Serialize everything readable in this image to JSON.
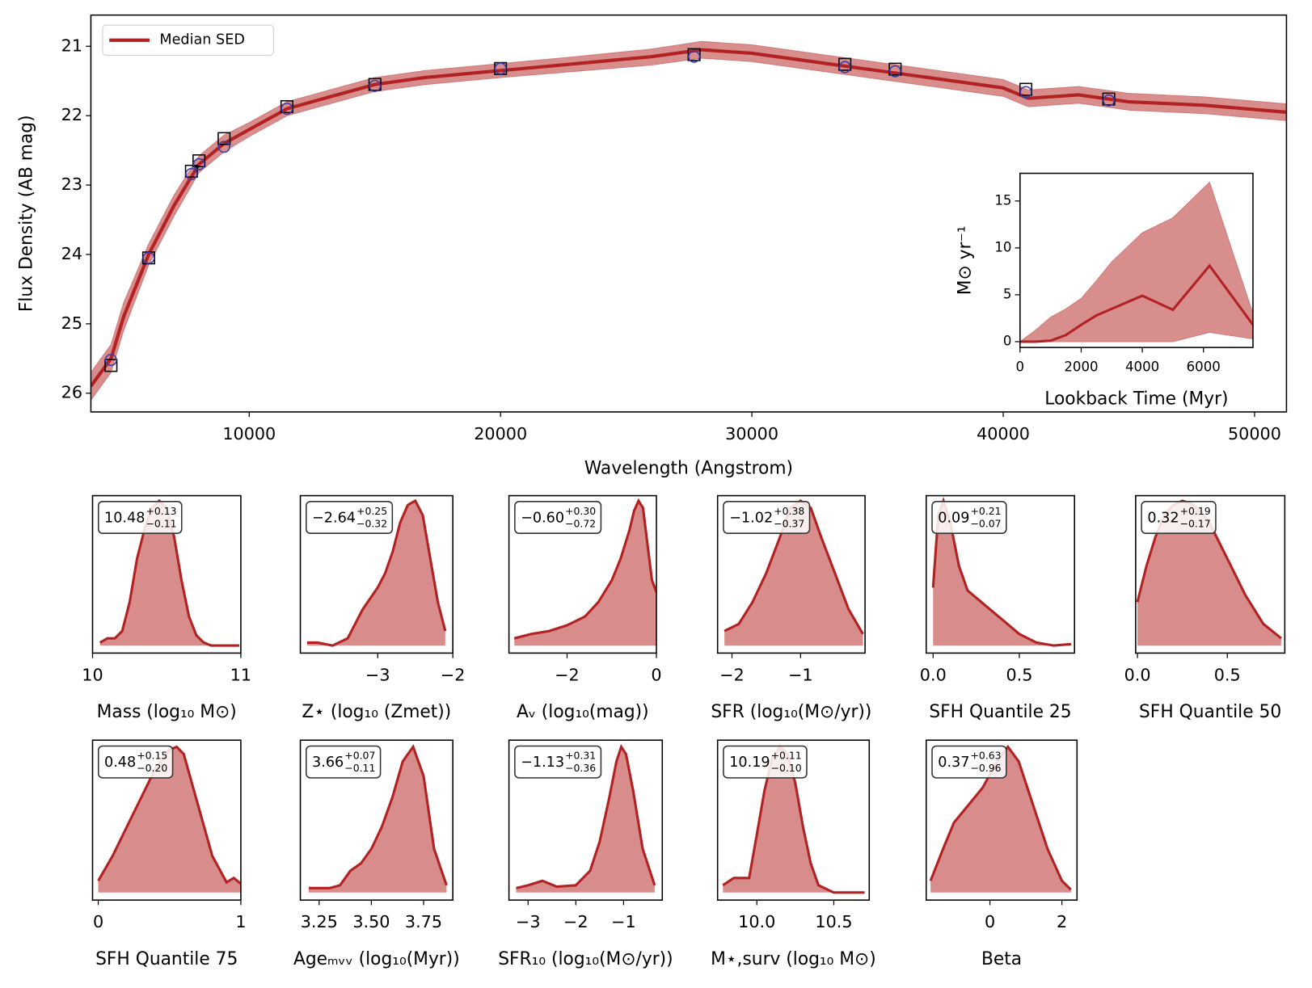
{
  "chart_data": [
    {
      "type": "line",
      "xlabel": "Wavelength (Angstrom)",
      "ylabel": "Flux Density (AB mag)",
      "xlim": [
        3700,
        51270
      ],
      "ylim": [
        26.27,
        20.55
      ],
      "xticks": [
        10000,
        20000,
        30000,
        40000,
        50000
      ],
      "yticks": [
        21,
        22,
        23,
        24,
        25,
        26
      ],
      "legend": "upper left",
      "x": [
        3700,
        4500,
        5000,
        6000,
        7000,
        8000,
        9000,
        10000,
        11500,
        13000,
        15000,
        17000,
        20000,
        23000,
        26000,
        28000,
        30000,
        33000,
        36000,
        38000,
        40000,
        41000,
        43000,
        45000,
        48000,
        51270
      ],
      "series": [
        {
          "name": "Median SED",
          "color": "#b22222",
          "band_color": "#d27a7a",
          "values": [
            25.9,
            25.5,
            24.9,
            24.0,
            23.3,
            22.7,
            22.4,
            22.2,
            21.9,
            21.75,
            21.55,
            21.45,
            21.35,
            21.25,
            21.15,
            21.05,
            21.1,
            21.25,
            21.4,
            21.5,
            21.6,
            21.75,
            21.7,
            21.8,
            21.85,
            21.95
          ],
          "lower": [
            25.7,
            25.3,
            24.7,
            23.85,
            23.15,
            22.58,
            22.28,
            22.1,
            21.8,
            21.65,
            21.45,
            21.35,
            21.25,
            21.15,
            21.04,
            20.93,
            20.98,
            21.13,
            21.28,
            21.38,
            21.48,
            21.63,
            21.58,
            21.68,
            21.73,
            21.83
          ],
          "upper": [
            26.1,
            25.7,
            25.1,
            24.15,
            23.45,
            22.82,
            22.52,
            22.3,
            22.0,
            21.85,
            21.65,
            21.55,
            21.45,
            21.36,
            21.27,
            21.17,
            21.22,
            21.37,
            21.52,
            21.62,
            21.72,
            21.87,
            21.82,
            21.92,
            21.97,
            22.07
          ]
        }
      ],
      "photometry": {
        "x": [
          4500,
          6000,
          7700,
          8000,
          9000,
          11500,
          15000,
          20000,
          27700,
          33700,
          35700,
          40900,
          44200
        ],
        "observed": [
          25.6,
          24.05,
          22.8,
          22.65,
          22.33,
          21.87,
          21.55,
          21.32,
          21.12,
          21.26,
          21.33,
          21.62,
          21.76
        ],
        "model": [
          25.52,
          24.05,
          22.84,
          22.7,
          22.45,
          21.9,
          21.57,
          21.32,
          21.15,
          21.3,
          21.36,
          21.66,
          21.78
        ],
        "observed_color": "#000000",
        "model_color": "#3a3aa8"
      }
    },
    {
      "type": "line",
      "xlabel": "Lookback Time (Myr)",
      "ylabel": "M⊙ yr⁻¹",
      "xlim": [
        0,
        7620
      ],
      "ylim": [
        -0.62,
        17.95
      ],
      "xticks": [
        0,
        2000,
        4000,
        6000
      ],
      "yticks": [
        0,
        5,
        10,
        15
      ],
      "x": [
        0,
        500,
        1000,
        1500,
        2000,
        2500,
        3000,
        4000,
        5000,
        6200,
        7620
      ],
      "series": [
        {
          "color": "#b22222",
          "band_color": "#d27a7a",
          "values": [
            0,
            0,
            0.1,
            0.7,
            1.8,
            2.8,
            3.5,
            4.9,
            3.4,
            8.1,
            1.8
          ],
          "lower": [
            0,
            0,
            0,
            0,
            0,
            0,
            0,
            0,
            0,
            1,
            0.3
          ],
          "upper": [
            0,
            1.2,
            2.6,
            3.5,
            4.6,
            6.5,
            8.5,
            11.6,
            13.2,
            17,
            3
          ]
        }
      ]
    },
    {
      "type": "area",
      "xlabel": "Mass (log₁₀ M⊙)",
      "color": "#b22222",
      "fill": "#d88c8c",
      "annotation": {
        "median": "10.48",
        "upper": "+0.13",
        "lower": "−0.11"
      },
      "xlim": [
        10.0,
        11.0
      ],
      "ylim": [
        -0.052,
        1.035
      ],
      "xticks": [
        10,
        11
      ],
      "x": [
        10.05,
        10.1,
        10.15,
        10.2,
        10.25,
        10.3,
        10.35,
        10.4,
        10.45,
        10.5,
        10.55,
        10.6,
        10.65,
        10.7,
        10.75,
        10.8,
        10.9,
        10.99
      ],
      "values": [
        0.02,
        0.05,
        0.05,
        0.1,
        0.3,
        0.6,
        0.8,
        0.95,
        1.0,
        0.95,
        0.75,
        0.45,
        0.2,
        0.07,
        0.02,
        0.0,
        0.0,
        0.0
      ]
    },
    {
      "type": "area",
      "xlabel": "Z⋆ (log₁₀ (Zmet))",
      "color": "#b22222",
      "fill": "#d88c8c",
      "annotation": {
        "median": "−2.64",
        "upper": "+0.25",
        "lower": "−0.32"
      },
      "xlim": [
        -4.03,
        -2.0
      ],
      "ylim": [
        -0.052,
        1.035
      ],
      "xticks": [
        {
          "value": -3,
          "label": "−3"
        },
        {
          "value": -2,
          "label": "−2"
        }
      ],
      "x": [
        -3.94,
        -3.8,
        -3.6,
        -3.4,
        -3.2,
        -3.0,
        -2.9,
        -2.8,
        -2.7,
        -2.6,
        -2.5,
        -2.4,
        -2.3,
        -2.2,
        -2.1
      ],
      "values": [
        0.02,
        0.02,
        0.0,
        0.05,
        0.25,
        0.4,
        0.5,
        0.65,
        0.85,
        0.97,
        1.0,
        0.9,
        0.6,
        0.3,
        0.1
      ]
    },
    {
      "type": "area",
      "xlabel": "Aᵥ (log₁₀(mag))",
      "color": "#b22222",
      "fill": "#d88c8c",
      "annotation": {
        "median": "−0.60",
        "upper": "+0.30",
        "lower": "−0.72"
      },
      "xlim": [
        -3.3,
        0.0
      ],
      "ylim": [
        -0.052,
        1.035
      ],
      "xticks": [
        {
          "value": -2,
          "label": "−2"
        },
        0
      ],
      "x": [
        -3.18,
        -2.8,
        -2.4,
        -2.0,
        -1.6,
        -1.3,
        -1.0,
        -0.8,
        -0.6,
        -0.5,
        -0.4,
        -0.3,
        -0.2,
        -0.1,
        0.0
      ],
      "values": [
        0.05,
        0.08,
        0.1,
        0.14,
        0.2,
        0.3,
        0.45,
        0.6,
        0.8,
        0.93,
        1.0,
        0.95,
        0.7,
        0.45,
        0.37
      ]
    },
    {
      "type": "area",
      "xlabel": "SFR (log₁₀(M⊙/yr))",
      "color": "#b22222",
      "fill": "#d88c8c",
      "annotation": {
        "median": "−1.02",
        "upper": "+0.38",
        "lower": "−0.37"
      },
      "xlim": [
        -2.21,
        -0.06
      ],
      "ylim": [
        -0.052,
        1.035
      ],
      "xticks": [
        {
          "value": -2,
          "label": "−2"
        },
        {
          "value": -1,
          "label": "−1"
        }
      ],
      "x": [
        -2.11,
        -1.9,
        -1.7,
        -1.5,
        -1.3,
        -1.15,
        -1.0,
        -0.85,
        -0.7,
        -0.5,
        -0.3,
        -0.09
      ],
      "values": [
        0.1,
        0.15,
        0.3,
        0.5,
        0.75,
        0.95,
        1.0,
        0.95,
        0.75,
        0.5,
        0.25,
        0.08
      ]
    },
    {
      "type": "area",
      "xlabel": "SFH Quantile 25",
      "color": "#b22222",
      "fill": "#d88c8c",
      "annotation": {
        "median": "0.09",
        "upper": "+0.21",
        "lower": "−0.07"
      },
      "xlim": [
        -0.04,
        0.82
      ],
      "ylim": [
        -0.052,
        1.035
      ],
      "xticks": [
        {
          "value": 0,
          "label": "0.0"
        },
        0.5
      ],
      "x": [
        0.0,
        0.03,
        0.06,
        0.1,
        0.15,
        0.2,
        0.3,
        0.4,
        0.5,
        0.6,
        0.7,
        0.8
      ],
      "values": [
        0.4,
        0.9,
        1.0,
        0.85,
        0.55,
        0.38,
        0.28,
        0.18,
        0.08,
        0.02,
        0.0,
        0.01
      ]
    },
    {
      "type": "area",
      "xlabel": "SFH Quantile 50",
      "color": "#b22222",
      "fill": "#d88c8c",
      "annotation": {
        "median": "0.32",
        "upper": "+0.19",
        "lower": "−0.17"
      },
      "xlim": [
        -0.01,
        0.82
      ],
      "ylim": [
        -0.052,
        1.035
      ],
      "xticks": [
        {
          "value": 0,
          "label": "0.0"
        },
        0.5
      ],
      "x": [
        0.0,
        0.05,
        0.1,
        0.15,
        0.2,
        0.25,
        0.3,
        0.35,
        0.4,
        0.5,
        0.6,
        0.7,
        0.8
      ],
      "values": [
        0.3,
        0.55,
        0.75,
        0.9,
        0.97,
        1.0,
        0.98,
        0.93,
        0.85,
        0.6,
        0.35,
        0.15,
        0.05
      ]
    },
    {
      "type": "area",
      "xlabel": "SFH Quantile 75",
      "color": "#b22222",
      "fill": "#d88c8c",
      "annotation": {
        "median": "0.48",
        "upper": "+0.15",
        "lower": "−0.20"
      },
      "xlim": [
        -0.04,
        1.0
      ],
      "ylim": [
        -0.052,
        1.046
      ],
      "xticks": [
        0,
        1
      ],
      "x": [
        0.0,
        0.1,
        0.2,
        0.3,
        0.4,
        0.5,
        0.55,
        0.6,
        0.7,
        0.8,
        0.9,
        0.95,
        1.0
      ],
      "values": [
        0.08,
        0.25,
        0.45,
        0.65,
        0.85,
        0.98,
        1.0,
        0.95,
        0.6,
        0.25,
        0.07,
        0.1,
        0.06
      ]
    },
    {
      "type": "area",
      "xlabel": "Ageₘᵥᵥ (log₁₀(Myr))",
      "color": "#b22222",
      "fill": "#d88c8c",
      "annotation": {
        "median": "3.66",
        "upper": "+0.07",
        "lower": "−0.11"
      },
      "xlim": [
        3.16,
        3.89
      ],
      "ylim": [
        -0.052,
        1.046
      ],
      "xticks": [
        3.25,
        {
          "value": 3.5,
          "label": "3.50"
        },
        3.75
      ],
      "x": [
        3.2,
        3.3,
        3.35,
        3.4,
        3.45,
        3.5,
        3.55,
        3.6,
        3.65,
        3.7,
        3.75,
        3.8,
        3.86
      ],
      "values": [
        0.03,
        0.03,
        0.05,
        0.15,
        0.2,
        0.3,
        0.45,
        0.65,
        0.9,
        1.0,
        0.8,
        0.3,
        0.05
      ]
    },
    {
      "type": "area",
      "xlabel": "SFR₁₀ (log₁₀(M⊙/yr))",
      "color": "#b22222",
      "fill": "#d88c8c",
      "annotation": {
        "median": "−1.13",
        "upper": "+0.31",
        "lower": "−0.36"
      },
      "xlim": [
        -3.4,
        -0.19
      ],
      "ylim": [
        -0.052,
        1.046
      ],
      "xticks": [
        {
          "value": -3,
          "label": "−3"
        },
        {
          "value": -2,
          "label": "−2"
        },
        {
          "value": -1,
          "label": "−1"
        }
      ],
      "x": [
        -3.25,
        -3.0,
        -2.7,
        -2.4,
        -2.0,
        -1.7,
        -1.5,
        -1.3,
        -1.15,
        -1.05,
        -0.95,
        -0.8,
        -0.6,
        -0.35
      ],
      "values": [
        0.03,
        0.05,
        0.08,
        0.04,
        0.05,
        0.15,
        0.35,
        0.65,
        0.9,
        1.0,
        0.95,
        0.7,
        0.3,
        0.05
      ]
    },
    {
      "type": "area",
      "xlabel": "M⋆,surv (log₁₀ M⊙)",
      "color": "#b22222",
      "fill": "#d88c8c",
      "annotation": {
        "median": "10.19",
        "upper": "+0.11",
        "lower": "−0.10"
      },
      "xlim": [
        9.745,
        10.73
      ],
      "ylim": [
        -0.052,
        1.046
      ],
      "xticks": [
        {
          "value": 10,
          "label": "10.0"
        },
        10.5
      ],
      "x": [
        9.78,
        9.85,
        9.95,
        10.0,
        10.05,
        10.1,
        10.15,
        10.2,
        10.25,
        10.3,
        10.35,
        10.4,
        10.5,
        10.6,
        10.7
      ],
      "values": [
        0.05,
        0.1,
        0.1,
        0.4,
        0.7,
        0.92,
        1.0,
        0.95,
        0.75,
        0.45,
        0.2,
        0.05,
        0.0,
        0.0,
        0.0
      ]
    },
    {
      "type": "area",
      "xlabel": "Beta",
      "color": "#b22222",
      "fill": "#d88c8c",
      "annotation": {
        "median": "0.37",
        "upper": "+0.63",
        "lower": "−0.96"
      },
      "xlim": [
        -1.77,
        2.42
      ],
      "ylim": [
        -0.052,
        1.046
      ],
      "xticks": [
        0,
        2
      ],
      "x": [
        -1.65,
        -1.3,
        -1.0,
        -0.6,
        -0.2,
        0.2,
        0.5,
        0.8,
        1.2,
        1.6,
        2.0,
        2.25
      ],
      "values": [
        0.08,
        0.3,
        0.48,
        0.6,
        0.72,
        0.9,
        1.0,
        0.9,
        0.6,
        0.3,
        0.08,
        0.02
      ]
    }
  ]
}
